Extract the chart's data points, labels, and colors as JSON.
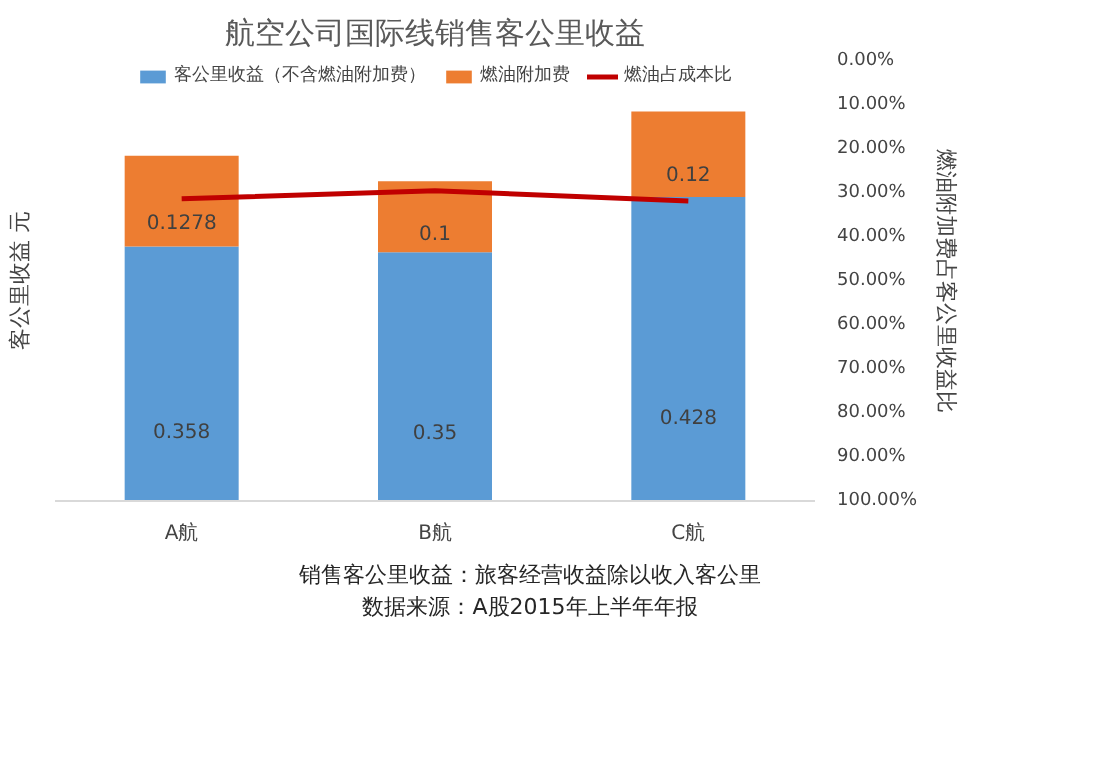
{
  "chart_data": {
    "type": "bar",
    "title": "航空公司国际线销售客公里收益",
    "categories": [
      "A航",
      "B航",
      "C航"
    ],
    "stacked": true,
    "legend": "top",
    "grid": false,
    "ylabel": "客公里收益 元",
    "y2label": "燃油附加费占客公里收益比",
    "series": [
      {
        "name": "客公里收益（不含燃油附加费）",
        "color": "#5b9bd5",
        "values": [
          0.358,
          0.35,
          0.428
        ],
        "value_labels": [
          "0.358",
          "0.35",
          "0.428"
        ]
      },
      {
        "name": "燃油附加费",
        "color": "#ed7d31",
        "values": [
          0.1278,
          0.1,
          0.12
        ],
        "value_labels": [
          "0.1278",
          "0.1",
          "0.12"
        ]
      },
      {
        "name": "燃油占成本比",
        "type": "line",
        "axis": "y2",
        "color": "#c00000",
        "values": [
          31.3,
          29.5,
          31.8
        ]
      }
    ],
    "y2lim": [
      100,
      0
    ],
    "y2ticks": [
      {
        "value": 0,
        "label": "0.00%"
      },
      {
        "value": 10,
        "label": "10.00%"
      },
      {
        "value": 20,
        "label": "20.00%"
      },
      {
        "value": 30,
        "label": "30.00%"
      },
      {
        "value": 40,
        "label": "40.00%"
      },
      {
        "value": 50,
        "label": "50.00%"
      },
      {
        "value": 60,
        "label": "60.00%"
      },
      {
        "value": 70,
        "label": "70.00%"
      },
      {
        "value": 80,
        "label": "80.00%"
      },
      {
        "value": 90,
        "label": "90.00%"
      },
      {
        "value": 100,
        "label": "100.00%"
      }
    ],
    "annotations": [
      "销售客公里收益：旅客经营收益除以收入客公里",
      "数据来源：A股2015年上半年年报"
    ]
  }
}
